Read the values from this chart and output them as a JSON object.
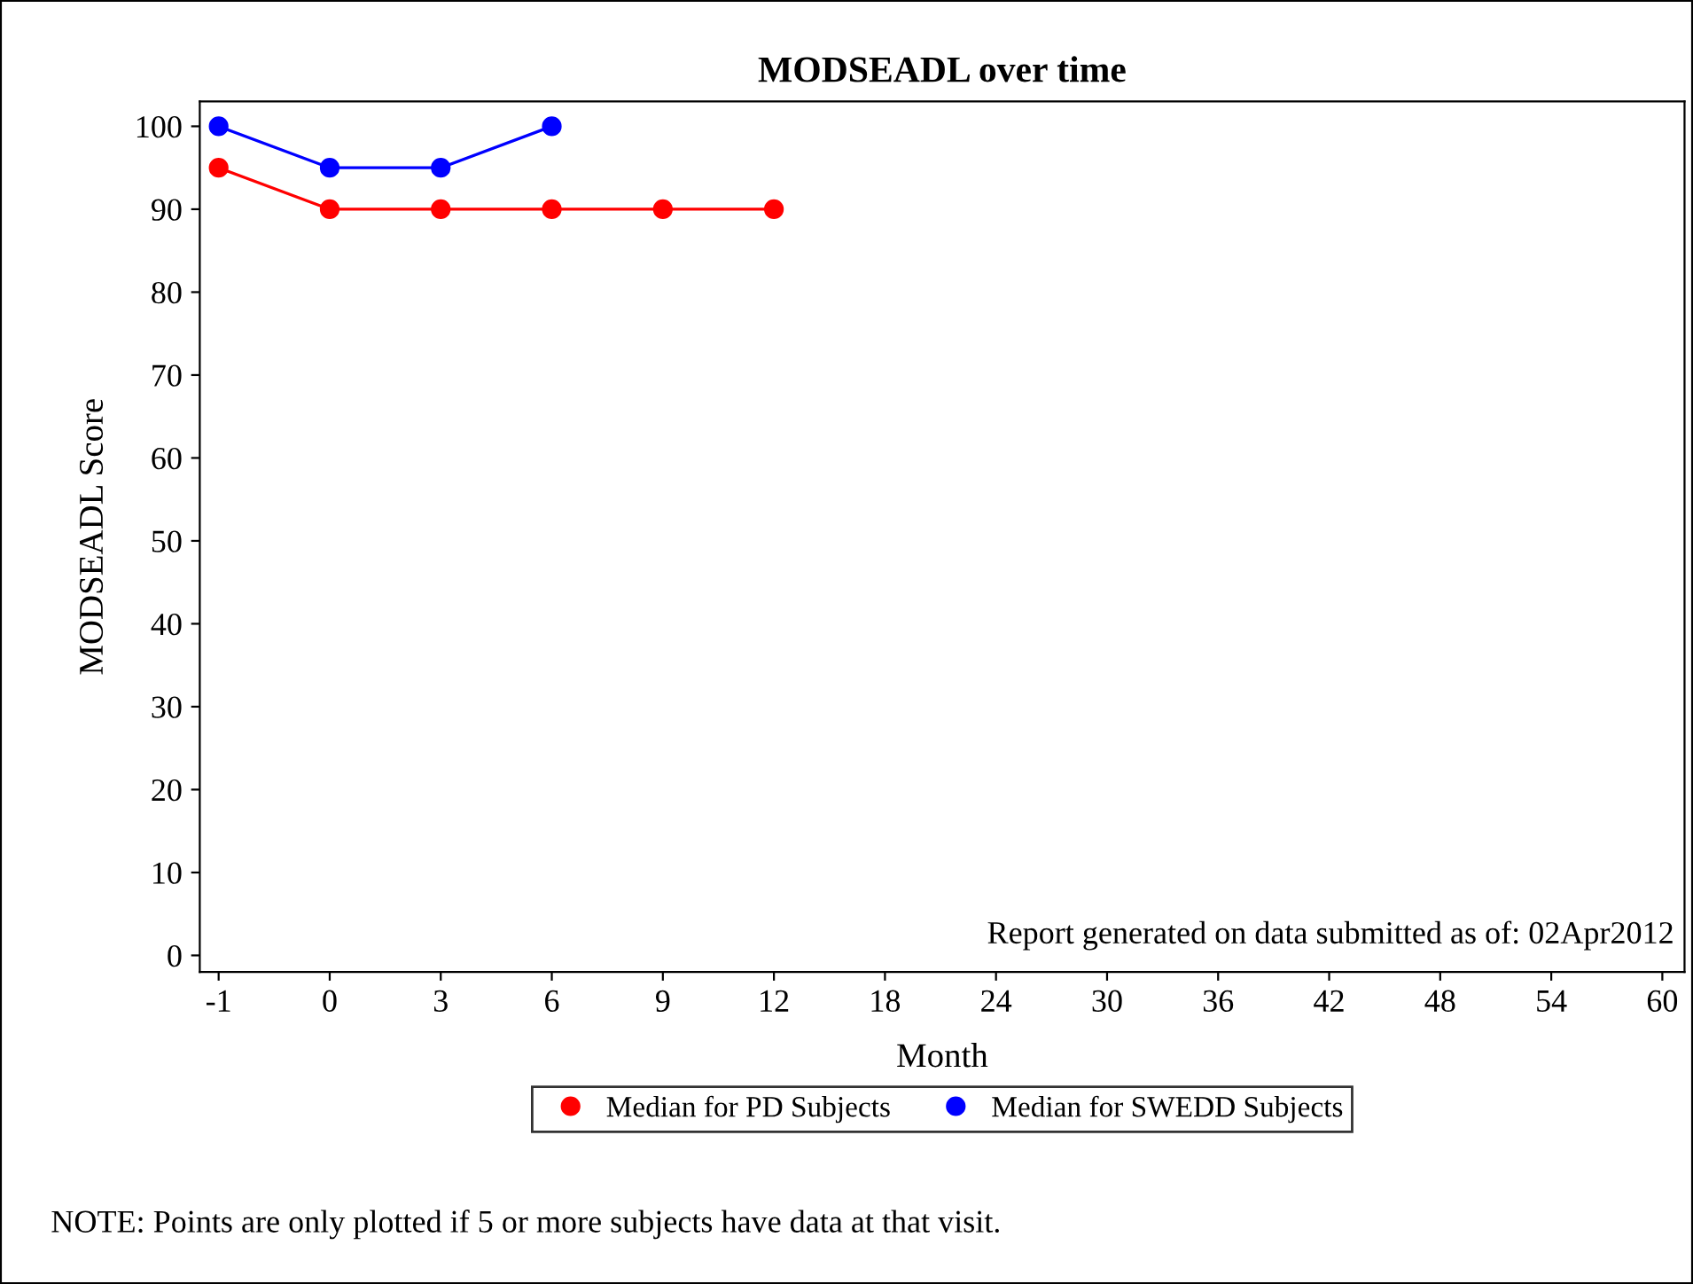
{
  "chart_data": {
    "type": "line",
    "title": "MODSEADL over time",
    "xlabel": "Month",
    "ylabel": "MODSEADL Score",
    "categories": [
      "-1",
      "0",
      "3",
      "6",
      "9",
      "12",
      "18",
      "24",
      "30",
      "36",
      "42",
      "48",
      "54",
      "60"
    ],
    "series": [
      {
        "name": "Median for PD Subjects",
        "color": "#ff0000",
        "values": [
          95,
          90,
          90,
          90,
          90,
          90,
          null,
          null,
          null,
          null,
          null,
          null,
          null,
          null
        ]
      },
      {
        "name": "Median for SWEDD Subjects",
        "color": "#0000ff",
        "values": [
          100,
          95,
          95,
          100,
          null,
          null,
          null,
          null,
          null,
          null,
          null,
          null,
          null,
          null
        ]
      }
    ],
    "ylim": [
      -2,
      103
    ],
    "yticks": [
      0,
      10,
      20,
      30,
      40,
      50,
      60,
      70,
      80,
      90,
      100
    ],
    "marker": "circle",
    "line_style": "solid",
    "grid": false,
    "legend": "bottom",
    "annotations": [
      "Report generated on data submitted as of: 02Apr2012",
      "NOTE: Points are only plotted if 5 or more subjects have data at that visit."
    ]
  }
}
